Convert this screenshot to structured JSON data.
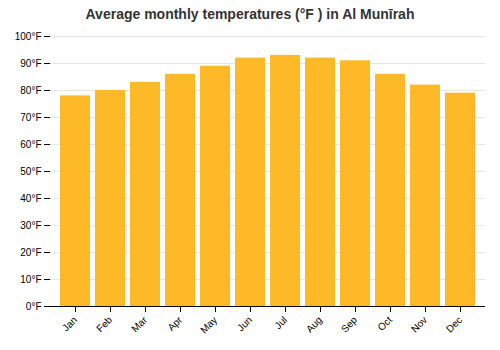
{
  "chart_data": {
    "type": "bar",
    "title": "Average monthly temperatures (°F ) in Al Munīrah",
    "categories": [
      "Jan",
      "Feb",
      "Mar",
      "Apr",
      "May",
      "Jun",
      "Jul",
      "Aug",
      "Sep",
      "Oct",
      "Nov",
      "Dec"
    ],
    "values": [
      78,
      80,
      83,
      86,
      89,
      92,
      93,
      92,
      91,
      86,
      82,
      79
    ],
    "color": "#FDB927",
    "ylim": [
      0,
      100
    ],
    "yticks": [
      {
        "value": 0,
        "label": "0°F"
      },
      {
        "value": 10,
        "label": "10°F"
      },
      {
        "value": 20,
        "label": "20°F"
      },
      {
        "value": 30,
        "label": "30°F"
      },
      {
        "value": 40,
        "label": "40°F"
      },
      {
        "value": 50,
        "label": "50°F"
      },
      {
        "value": 60,
        "label": "60°F"
      },
      {
        "value": 70,
        "label": "70°F"
      },
      {
        "value": 80,
        "label": "80°F"
      },
      {
        "value": 90,
        "label": "90°F"
      },
      {
        "value": 100,
        "label": "100°F"
      }
    ],
    "grid": true
  }
}
